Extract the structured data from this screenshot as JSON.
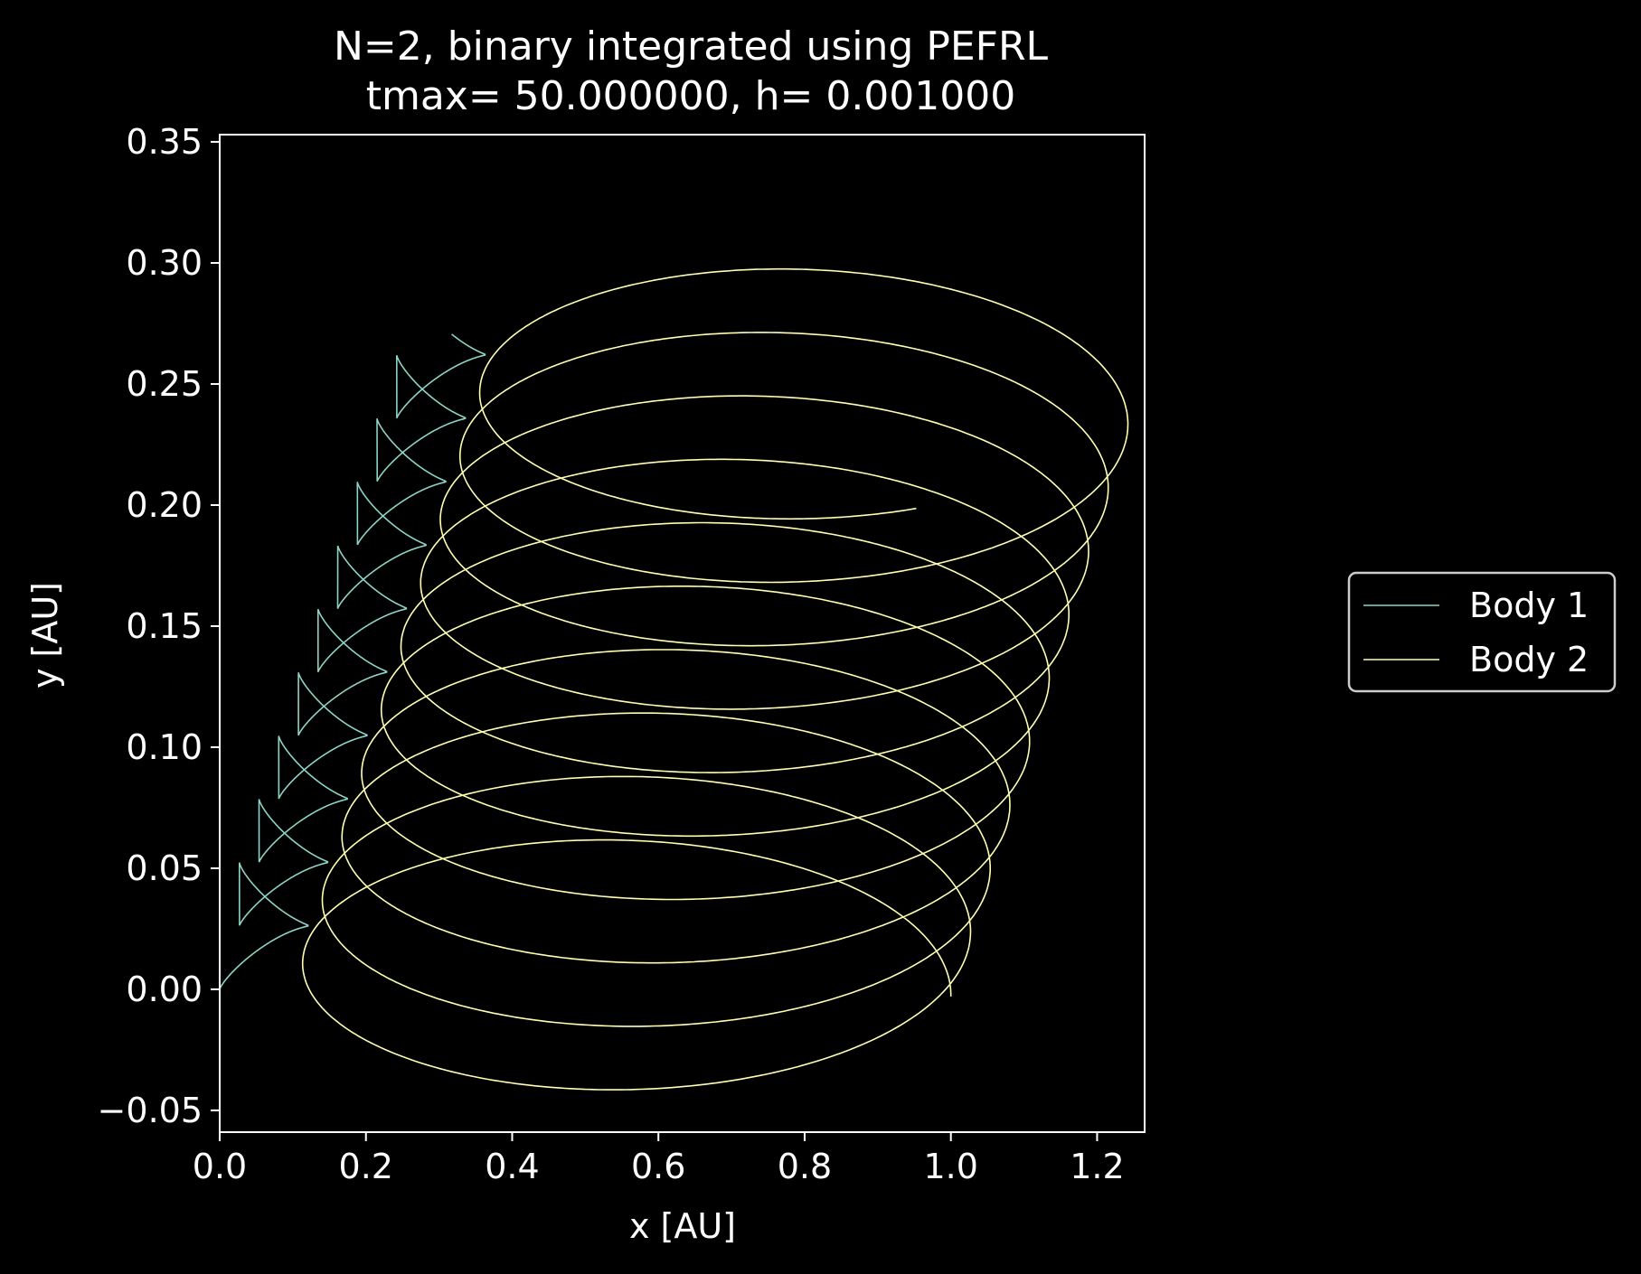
{
  "chart_data": {
    "type": "line",
    "title": "N=2, binary integrated using PEFRL",
    "subtitle": "tmax= 50.000000, h= 0.001000",
    "xlabel": "x [AU]",
    "ylabel": "y [AU]",
    "xlim": [
      0.0,
      1.265
    ],
    "ylim": [
      -0.059,
      0.353
    ],
    "xticks": [
      "0.0",
      "0.2",
      "0.4",
      "0.6",
      "0.8",
      "1.0",
      "1.2"
    ],
    "xtick_values": [
      0.0,
      0.2,
      0.4,
      0.6,
      0.8,
      1.0,
      1.2
    ],
    "yticks": [
      "−0.05",
      "0.00",
      "0.05",
      "0.10",
      "0.15",
      "0.20",
      "0.25",
      "0.30",
      "0.35"
    ],
    "ytick_values": [
      -0.05,
      0.0,
      0.05,
      0.1,
      0.15,
      0.2,
      0.25,
      0.3,
      0.35
    ],
    "grid": false,
    "legend_position": "outside-right",
    "series": [
      {
        "name": "Body 1",
        "color": "#8dd3c7",
        "orbit": {
          "start": [
            0.0,
            0.0
          ],
          "drift_per_orbit": [
            0.0269,
            0.0262
          ],
          "cusp_offset": [
            0.0,
            0.0262
          ],
          "bulge_offset": [
            0.107,
            0.015
          ],
          "orbits": 9.8
        }
      },
      {
        "name": "Body 2",
        "color": "#ffffb3",
        "orbit": {
          "start": [
            1.0,
            0.0
          ],
          "drift_per_orbit": [
            0.0269,
            0.0262
          ],
          "center_offset": [
            -0.45,
            -0.003
          ],
          "semi_axes": [
            0.45,
            0.058
          ],
          "orbits": 9.8
        }
      }
    ]
  }
}
